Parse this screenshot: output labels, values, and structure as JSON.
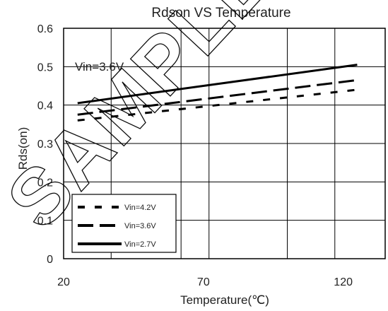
{
  "chart_data": {
    "type": "line",
    "title": "Rdson VS Temperature",
    "xlabel": "Temperature(℃)",
    "ylabel": "Rds(on)",
    "xlim": [
      20,
      135
    ],
    "ylim": [
      0,
      0.6
    ],
    "xticks": [
      20,
      70,
      120
    ],
    "yticks": [
      0,
      0.1,
      0.2,
      0.3,
      0.4,
      0.5,
      0.6
    ],
    "annotation": "Vin=3.6V",
    "grid": true,
    "legend_position": "bottom-left",
    "series": [
      {
        "name": "Vin=4.2V",
        "style": "dotted",
        "x": [
          25,
          125
        ],
        "y": [
          0.36,
          0.44
        ]
      },
      {
        "name": "Vin=3.6V",
        "style": "dashed",
        "x": [
          25,
          125
        ],
        "y": [
          0.375,
          0.465
        ]
      },
      {
        "name": "Vin=2.7V",
        "style": "solid",
        "x": [
          25,
          125
        ],
        "y": [
          0.405,
          0.505
        ]
      }
    ]
  },
  "watermark": "SAMPLE DESIGN"
}
